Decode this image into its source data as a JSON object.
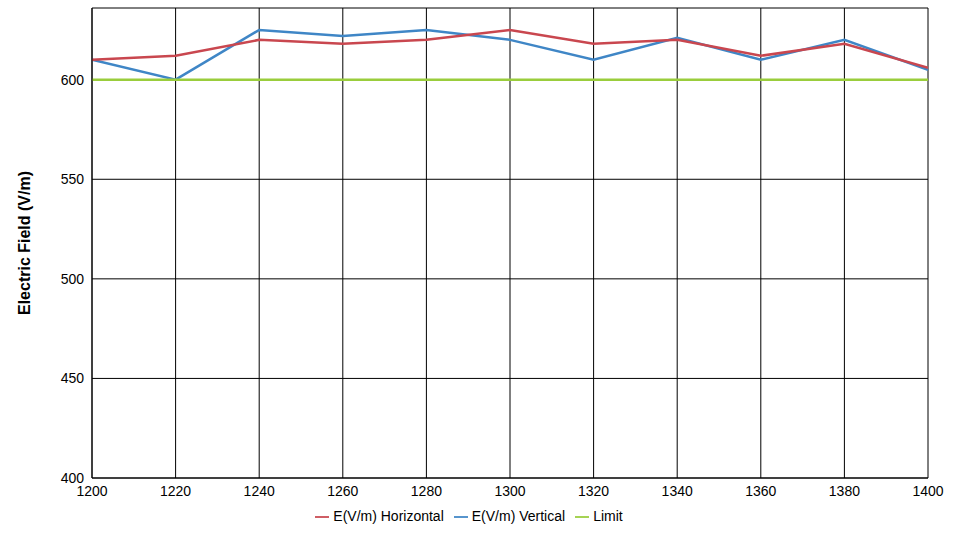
{
  "chart_data": {
    "type": "line",
    "y_label": "Electric Field (V/m)",
    "x": [
      1200,
      1220,
      1240,
      1260,
      1280,
      1300,
      1320,
      1340,
      1360,
      1380,
      1400
    ],
    "series": [
      {
        "name": "E(V/m) Vertical",
        "color": "#3f86c6",
        "values": [
          610,
          600,
          625,
          622,
          625,
          620,
          610,
          621,
          610,
          620,
          605
        ]
      },
      {
        "name": "E(V/m) Horizontal",
        "color": "#c9474f",
        "values": [
          610,
          612,
          620,
          618,
          620,
          625,
          618,
          620,
          612,
          618,
          606
        ]
      },
      {
        "name": "Limit",
        "color": "#9acd3c",
        "values": [
          600,
          600,
          600,
          600,
          600,
          600,
          600,
          600,
          600,
          600,
          600
        ]
      }
    ],
    "xlim": [
      1200,
      1400
    ],
    "xticks": [
      1200,
      1220,
      1240,
      1260,
      1280,
      1300,
      1320,
      1340,
      1360,
      1380,
      1400
    ],
    "ylim": [
      400,
      636
    ],
    "yticks": [
      400,
      450,
      500,
      550,
      600
    ],
    "grid": true,
    "legend": "bottom"
  }
}
